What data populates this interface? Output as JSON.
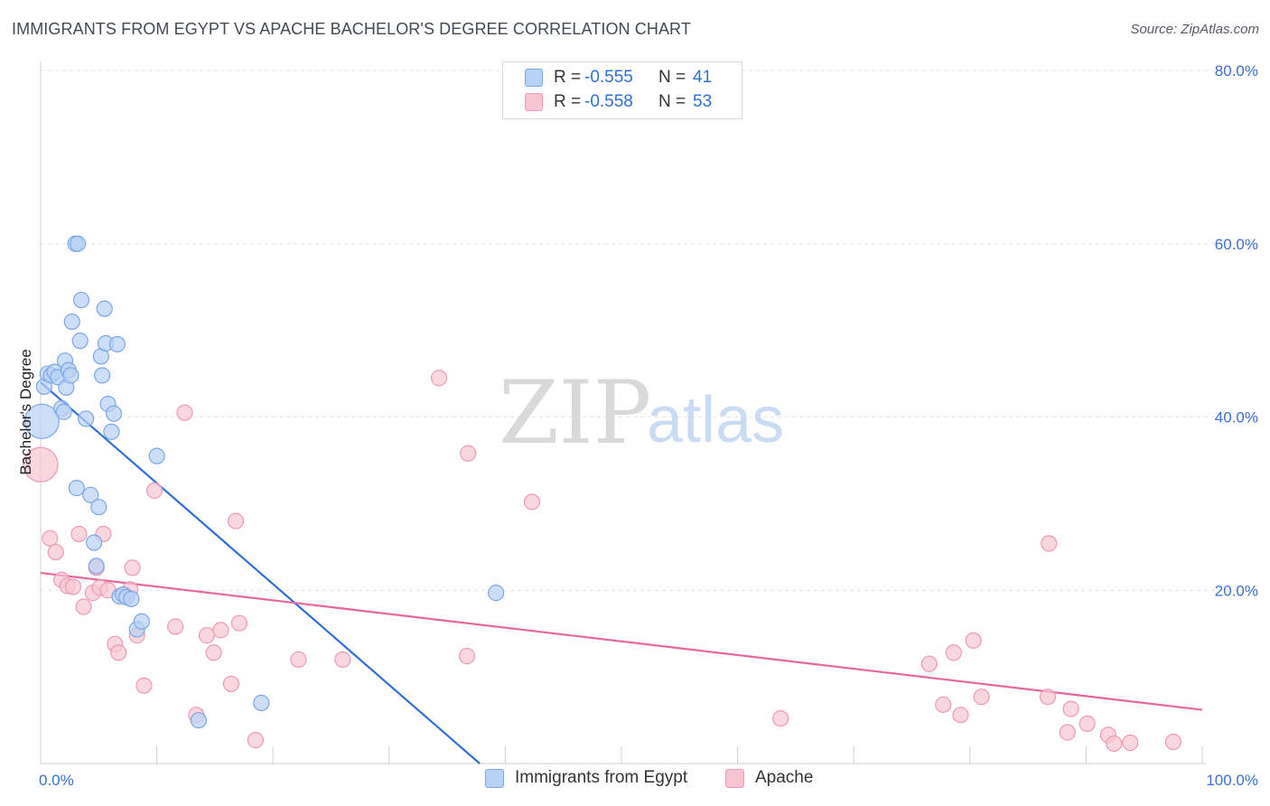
{
  "title": "IMMIGRANTS FROM EGYPT VS APACHE BACHELOR'S DEGREE CORRELATION CHART",
  "source": "Source: ZipAtlas.com",
  "watermark": {
    "zip": "ZIP",
    "atlas": "atlas"
  },
  "colors": {
    "blue_fill": "#b8d2f5",
    "blue_stroke": "#7ba7e6",
    "blue_line": "#2f6fd6",
    "pink_fill": "#f8c4d4",
    "pink_stroke": "#ee9ab4",
    "pink_line": "#e8679a",
    "accent_text": "#2f6fd6",
    "grid": "#e3e3e3"
  },
  "legend": {
    "rows": [
      {
        "r_label": "R =",
        "r_value": "-0.555",
        "n_label": "N =",
        "n_value": "41",
        "series": "Immigrants from Egypt"
      },
      {
        "r_label": "R =",
        "r_value": "-0.558",
        "n_label": "N =",
        "n_value": "53",
        "series": "Apache"
      }
    ]
  },
  "bottom_legend": {
    "series1": "Immigrants from Egypt",
    "series2": "Apache"
  },
  "chart_data": {
    "type": "scatter",
    "title": "IMMIGRANTS FROM EGYPT VS APACHE BACHELOR'S DEGREE CORRELATION CHART",
    "xlabel": "",
    "ylabel": "Bachelor's Degree",
    "xlim": [
      0,
      100
    ],
    "ylim": [
      0,
      80
    ],
    "x_tick_labels": [
      "0.0%",
      "100.0%"
    ],
    "y_tick_labels": [
      "20.0%",
      "40.0%",
      "60.0%",
      "80.0%"
    ],
    "y_ticks": [
      20,
      40,
      60,
      80
    ],
    "grid": true,
    "legend_placement": "top-center",
    "series": [
      {
        "name": "Immigrants from Egypt",
        "color": "#b8d2f5",
        "r": -0.555,
        "n": 41,
        "trend": {
          "x0": 0.0,
          "y0": 44.0,
          "x1": 37.8,
          "y1": 0.0
        },
        "points": [
          {
            "x": 0.1,
            "y": 39.5,
            "big": true
          },
          {
            "x": 0.3,
            "y": 43.5
          },
          {
            "x": 0.6,
            "y": 45.0
          },
          {
            "x": 0.9,
            "y": 44.8
          },
          {
            "x": 1.2,
            "y": 45.2
          },
          {
            "x": 1.5,
            "y": 44.6
          },
          {
            "x": 1.8,
            "y": 41.0
          },
          {
            "x": 2.0,
            "y": 40.6
          },
          {
            "x": 2.1,
            "y": 46.5
          },
          {
            "x": 2.2,
            "y": 43.4
          },
          {
            "x": 2.4,
            "y": 45.4
          },
          {
            "x": 2.6,
            "y": 44.8
          },
          {
            "x": 2.7,
            "y": 51.0
          },
          {
            "x": 3.0,
            "y": 60.0
          },
          {
            "x": 3.2,
            "y": 60.0
          },
          {
            "x": 3.4,
            "y": 48.8
          },
          {
            "x": 3.5,
            "y": 53.5
          },
          {
            "x": 3.1,
            "y": 31.8
          },
          {
            "x": 3.9,
            "y": 39.8
          },
          {
            "x": 4.3,
            "y": 31.0
          },
          {
            "x": 4.6,
            "y": 25.5
          },
          {
            "x": 4.8,
            "y": 22.8
          },
          {
            "x": 5.0,
            "y": 29.6
          },
          {
            "x": 5.2,
            "y": 47.0
          },
          {
            "x": 5.3,
            "y": 44.8
          },
          {
            "x": 5.5,
            "y": 52.5
          },
          {
            "x": 5.6,
            "y": 48.5
          },
          {
            "x": 5.8,
            "y": 41.5
          },
          {
            "x": 6.1,
            "y": 38.3
          },
          {
            "x": 6.3,
            "y": 40.4
          },
          {
            "x": 6.6,
            "y": 48.4
          },
          {
            "x": 6.8,
            "y": 19.3
          },
          {
            "x": 7.1,
            "y": 19.5
          },
          {
            "x": 7.4,
            "y": 19.2
          },
          {
            "x": 7.8,
            "y": 19.0
          },
          {
            "x": 8.3,
            "y": 15.5
          },
          {
            "x": 8.7,
            "y": 16.4
          },
          {
            "x": 10.0,
            "y": 35.5
          },
          {
            "x": 13.6,
            "y": 5.0
          },
          {
            "x": 19.0,
            "y": 7.0
          },
          {
            "x": 39.2,
            "y": 19.7
          }
        ]
      },
      {
        "name": "Apache",
        "color": "#f8c4d4",
        "r": -0.558,
        "n": 53,
        "trend": {
          "x0": 0.0,
          "y0": 22.0,
          "x1": 100.0,
          "y1": 6.2
        },
        "points": [
          {
            "x": 0.0,
            "y": 34.5,
            "big": true
          },
          {
            "x": 0.8,
            "y": 26.0
          },
          {
            "x": 1.3,
            "y": 24.4
          },
          {
            "x": 1.8,
            "y": 21.2
          },
          {
            "x": 2.3,
            "y": 20.5
          },
          {
            "x": 2.8,
            "y": 20.4
          },
          {
            "x": 3.3,
            "y": 26.5
          },
          {
            "x": 3.7,
            "y": 18.1
          },
          {
            "x": 4.5,
            "y": 19.7
          },
          {
            "x": 4.8,
            "y": 22.6
          },
          {
            "x": 5.1,
            "y": 20.3
          },
          {
            "x": 5.4,
            "y": 26.5
          },
          {
            "x": 5.8,
            "y": 20.0
          },
          {
            "x": 6.4,
            "y": 13.8
          },
          {
            "x": 6.7,
            "y": 12.8
          },
          {
            "x": 7.3,
            "y": 19.4
          },
          {
            "x": 7.7,
            "y": 20.1
          },
          {
            "x": 7.9,
            "y": 22.6
          },
          {
            "x": 8.3,
            "y": 14.8
          },
          {
            "x": 8.9,
            "y": 9.0
          },
          {
            "x": 9.8,
            "y": 31.5
          },
          {
            "x": 11.6,
            "y": 15.8
          },
          {
            "x": 12.4,
            "y": 40.5
          },
          {
            "x": 13.4,
            "y": 5.6
          },
          {
            "x": 14.3,
            "y": 14.8
          },
          {
            "x": 14.9,
            "y": 12.8
          },
          {
            "x": 15.5,
            "y": 15.4
          },
          {
            "x": 16.4,
            "y": 9.2
          },
          {
            "x": 16.8,
            "y": 28.0
          },
          {
            "x": 17.1,
            "y": 16.2
          },
          {
            "x": 18.5,
            "y": 2.7
          },
          {
            "x": 22.2,
            "y": 12.0
          },
          {
            "x": 26.0,
            "y": 12.0
          },
          {
            "x": 34.3,
            "y": 44.5
          },
          {
            "x": 36.7,
            "y": 12.4
          },
          {
            "x": 36.8,
            "y": 35.8
          },
          {
            "x": 42.3,
            "y": 30.2
          },
          {
            "x": 63.7,
            "y": 5.2
          },
          {
            "x": 76.5,
            "y": 11.5
          },
          {
            "x": 77.7,
            "y": 6.8
          },
          {
            "x": 78.6,
            "y": 12.8
          },
          {
            "x": 79.2,
            "y": 5.6
          },
          {
            "x": 80.3,
            "y": 14.2
          },
          {
            "x": 81.0,
            "y": 7.7
          },
          {
            "x": 86.8,
            "y": 25.4
          },
          {
            "x": 86.7,
            "y": 7.7
          },
          {
            "x": 88.4,
            "y": 3.6
          },
          {
            "x": 88.7,
            "y": 6.3
          },
          {
            "x": 90.1,
            "y": 4.6
          },
          {
            "x": 91.9,
            "y": 3.3
          },
          {
            "x": 92.4,
            "y": 2.3
          },
          {
            "x": 93.8,
            "y": 2.4
          },
          {
            "x": 97.5,
            "y": 2.5
          }
        ]
      }
    ]
  }
}
